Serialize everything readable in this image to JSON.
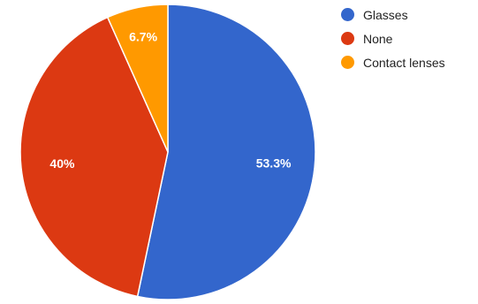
{
  "chart_data": {
    "type": "pie",
    "title": "",
    "categories": [
      "Glasses",
      "None",
      "Contact lenses"
    ],
    "values": [
      53.3,
      40,
      6.7
    ],
    "labels": [
      "53.3%",
      "40%",
      "6.7%"
    ],
    "colors": [
      "#3366cc",
      "#dc3912",
      "#ff9900"
    ],
    "legend_position": "right"
  }
}
